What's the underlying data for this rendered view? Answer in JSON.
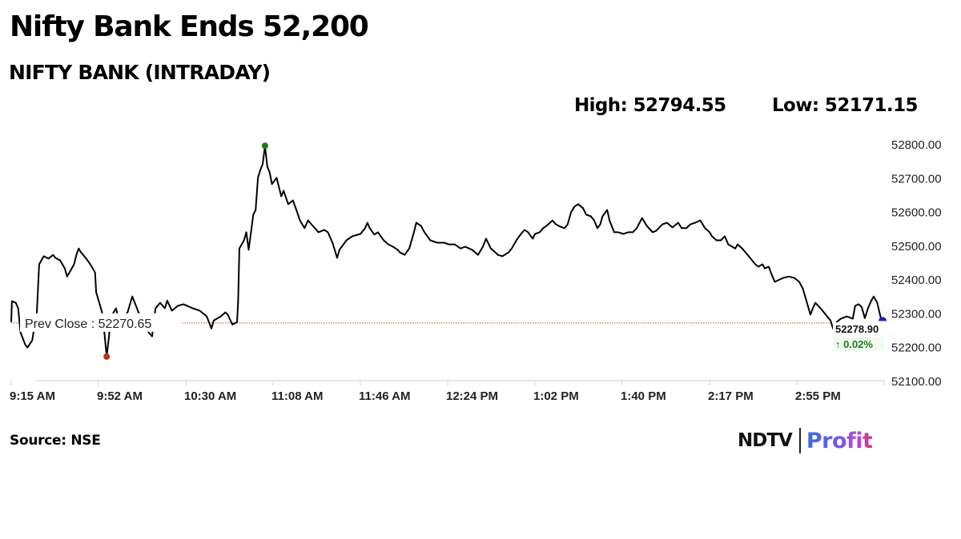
{
  "header": {
    "headline": "Nifty Bank Ends 52,200",
    "subtitle": "NIFTY BANK (INTRADAY)",
    "high_label": "High: 52794.55",
    "low_label": "Low: 52171.15"
  },
  "footer": {
    "source": "Source: NSE",
    "logo_left": "NDTV",
    "logo_right": "Profit"
  },
  "colors": {
    "line": "#000000",
    "prev_close_line": "#b5522f",
    "high_marker": "#1e7b1e",
    "low_marker": "#b0361c",
    "last_marker": "#1f1fc8",
    "change_text": "#1a7a1a",
    "axis": "#d0d0d0"
  },
  "chart_data": {
    "type": "line",
    "title": "NIFTY BANK (INTRADAY)",
    "xlabel": "",
    "ylabel": "",
    "ylim": [
      52100,
      52800
    ],
    "grid": false,
    "legend": "none",
    "y_ticks": [
      "52800.00",
      "52700.00",
      "52600.00",
      "52500.00",
      "52400.00",
      "52300.00",
      "52200.00",
      "52100.00"
    ],
    "x_ticks": [
      "9:15 AM",
      "9:52 AM",
      "10:30 AM",
      "11:08 AM",
      "11:46 AM",
      "12:24 PM",
      "1:02 PM",
      "1:40 PM",
      "2:17 PM",
      "2:55 PM"
    ],
    "x_unit": "minutes since 9:15 AM",
    "high": 52794.55,
    "low": 52171.15,
    "prev_close": 52270.65,
    "prev_close_label": "Prev Close : 52270.65",
    "last": 52278.9,
    "last_label": "52278.90",
    "change_label": "↑ 0.02%",
    "high_point": [
      109,
      52794.55
    ],
    "low_point": [
      41,
      52171.15
    ],
    "last_point": [
      374.3,
      52278.9
    ],
    "series": [
      {
        "name": "NIFTY BANK",
        "points": [
          [
            0,
            52273
          ],
          [
            0.3,
            52335
          ],
          [
            2,
            52330
          ],
          [
            3,
            52314
          ],
          [
            4,
            52243
          ],
          [
            6,
            52207
          ],
          [
            7,
            52198
          ],
          [
            9,
            52219
          ],
          [
            11,
            52302
          ],
          [
            12,
            52444
          ],
          [
            14,
            52468
          ],
          [
            16,
            52461
          ],
          [
            18,
            52472
          ],
          [
            19,
            52463
          ],
          [
            21,
            52456
          ],
          [
            23,
            52432
          ],
          [
            24,
            52408
          ],
          [
            25,
            52420
          ],
          [
            27,
            52444
          ],
          [
            28,
            52472
          ],
          [
            29,
            52491
          ],
          [
            30,
            52479
          ],
          [
            32,
            52463
          ],
          [
            34,
            52444
          ],
          [
            36,
            52420
          ],
          [
            36.5,
            52361
          ],
          [
            38,
            52326
          ],
          [
            39,
            52302
          ],
          [
            40,
            52243
          ],
          [
            41,
            52171
          ],
          [
            42,
            52231
          ],
          [
            43,
            52290
          ],
          [
            45,
            52314
          ],
          [
            47,
            52259
          ],
          [
            48.5,
            52290
          ],
          [
            50,
            52302
          ],
          [
            52,
            52349
          ],
          [
            54,
            52314
          ],
          [
            56,
            52278
          ],
          [
            59,
            52243
          ],
          [
            60.5,
            52231
          ],
          [
            62,
            52314
          ],
          [
            64,
            52330
          ],
          [
            66,
            52314
          ],
          [
            67,
            52337
          ],
          [
            69,
            52307
          ],
          [
            71.5,
            52321
          ],
          [
            74,
            52326
          ],
          [
            78,
            52314
          ],
          [
            81,
            52307
          ],
          [
            84,
            52290
          ],
          [
            86,
            52254
          ],
          [
            87,
            52278
          ],
          [
            90,
            52290
          ],
          [
            92,
            52302
          ],
          [
            93,
            52295
          ],
          [
            95,
            52266
          ],
          [
            97,
            52273
          ],
          [
            97.5,
            52337
          ],
          [
            98,
            52491
          ],
          [
            100,
            52515
          ],
          [
            101,
            52539
          ],
          [
            102,
            52487
          ],
          [
            104,
            52591
          ],
          [
            105,
            52605
          ],
          [
            106,
            52700
          ],
          [
            107,
            52723
          ],
          [
            108,
            52740
          ],
          [
            109,
            52794
          ],
          [
            110,
            52733
          ],
          [
            111,
            52716
          ],
          [
            112,
            52681
          ],
          [
            114,
            52700
          ],
          [
            116,
            52645
          ],
          [
            117,
            52662
          ],
          [
            119,
            52622
          ],
          [
            121,
            52633
          ],
          [
            122.5,
            52605
          ],
          [
            124,
            52574
          ],
          [
            126,
            52551
          ],
          [
            127.5,
            52574
          ],
          [
            129,
            52562
          ],
          [
            132,
            52539
          ],
          [
            134.5,
            52546
          ],
          [
            136,
            52539
          ],
          [
            138,
            52508
          ],
          [
            140,
            52463
          ],
          [
            141,
            52487
          ],
          [
            144,
            52515
          ],
          [
            146.5,
            52527
          ],
          [
            150,
            52534
          ],
          [
            152,
            52551
          ],
          [
            153,
            52567
          ],
          [
            154,
            52551
          ],
          [
            156,
            52532
          ],
          [
            157.5,
            52539
          ],
          [
            160,
            52515
          ],
          [
            162,
            52503
          ],
          [
            164,
            52496
          ],
          [
            166,
            52487
          ],
          [
            167,
            52479
          ],
          [
            169,
            52472
          ],
          [
            171,
            52491
          ],
          [
            173,
            52539
          ],
          [
            174,
            52567
          ],
          [
            176,
            52558
          ],
          [
            177.5,
            52539
          ],
          [
            180,
            52515
          ],
          [
            183,
            52508
          ],
          [
            186,
            52508
          ],
          [
            188,
            52503
          ],
          [
            190.5,
            52503
          ],
          [
            193,
            52491
          ],
          [
            195,
            52496
          ],
          [
            198,
            52487
          ],
          [
            200.5,
            52472
          ],
          [
            202.6,
            52496
          ],
          [
            204,
            52520
          ],
          [
            206,
            52491
          ],
          [
            208,
            52479
          ],
          [
            209,
            52472
          ],
          [
            211,
            52468
          ],
          [
            213.6,
            52479
          ],
          [
            215,
            52491
          ],
          [
            217,
            52515
          ],
          [
            219,
            52534
          ],
          [
            220.5,
            52546
          ],
          [
            222,
            52539
          ],
          [
            224,
            52520
          ],
          [
            225,
            52534
          ],
          [
            227,
            52539
          ],
          [
            228.5,
            52551
          ],
          [
            230,
            52558
          ],
          [
            232.5,
            52574
          ],
          [
            234,
            52562
          ],
          [
            236,
            52555
          ],
          [
            237.7,
            52551
          ],
          [
            239,
            52562
          ],
          [
            240.5,
            52598
          ],
          [
            242,
            52615
          ],
          [
            243.5,
            52622
          ],
          [
            245.6,
            52610
          ],
          [
            247,
            52591
          ],
          [
            249,
            52586
          ],
          [
            250.4,
            52574
          ],
          [
            251.8,
            52551
          ],
          [
            253,
            52562
          ],
          [
            254,
            52586
          ],
          [
            256,
            52605
          ],
          [
            257,
            52574
          ],
          [
            259,
            52539
          ],
          [
            260.7,
            52539
          ],
          [
            263,
            52534
          ],
          [
            265,
            52539
          ],
          [
            267,
            52539
          ],
          [
            268.7,
            52551
          ],
          [
            271,
            52581
          ],
          [
            273,
            52558
          ],
          [
            275.5,
            52539
          ],
          [
            277,
            52543
          ],
          [
            279.7,
            52562
          ],
          [
            281.7,
            52567
          ],
          [
            284,
            52553
          ],
          [
            286.5,
            52567
          ],
          [
            288,
            52551
          ],
          [
            290,
            52551
          ],
          [
            291.7,
            52562
          ],
          [
            293.8,
            52567
          ],
          [
            296,
            52574
          ],
          [
            298,
            52551
          ],
          [
            300,
            52539
          ],
          [
            301,
            52527
          ],
          [
            303,
            52515
          ],
          [
            304.8,
            52515
          ],
          [
            306.5,
            52527
          ],
          [
            308,
            52503
          ],
          [
            311,
            52491
          ],
          [
            312,
            52503
          ],
          [
            314,
            52491
          ],
          [
            316.8,
            52468
          ],
          [
            319.6,
            52444
          ],
          [
            321,
            52437
          ],
          [
            322.7,
            52444
          ],
          [
            323.7,
            52432
          ],
          [
            325.4,
            52437
          ],
          [
            327,
            52408
          ],
          [
            328,
            52392
          ],
          [
            329.5,
            52397
          ],
          [
            331.6,
            52404
          ],
          [
            334,
            52408
          ],
          [
            336.4,
            52404
          ],
          [
            338.5,
            52392
          ],
          [
            340,
            52373
          ],
          [
            342,
            52326
          ],
          [
            343.3,
            52295
          ],
          [
            344.3,
            52314
          ],
          [
            345.4,
            52330
          ],
          [
            346.7,
            52321
          ],
          [
            348.5,
            52307
          ],
          [
            350.5,
            52290
          ],
          [
            351.9,
            52278
          ],
          [
            353,
            52254
          ],
          [
            354.6,
            52273
          ],
          [
            356.3,
            52283
          ],
          [
            359,
            52290
          ],
          [
            361.5,
            52283
          ],
          [
            362.5,
            52321
          ],
          [
            364,
            52326
          ],
          [
            365.3,
            52318
          ],
          [
            366.7,
            52285
          ],
          [
            368,
            52314
          ],
          [
            369.5,
            52337
          ],
          [
            370.5,
            52349
          ],
          [
            372,
            52330
          ],
          [
            373.6,
            52283
          ],
          [
            374.3,
            52279
          ]
        ]
      }
    ]
  }
}
